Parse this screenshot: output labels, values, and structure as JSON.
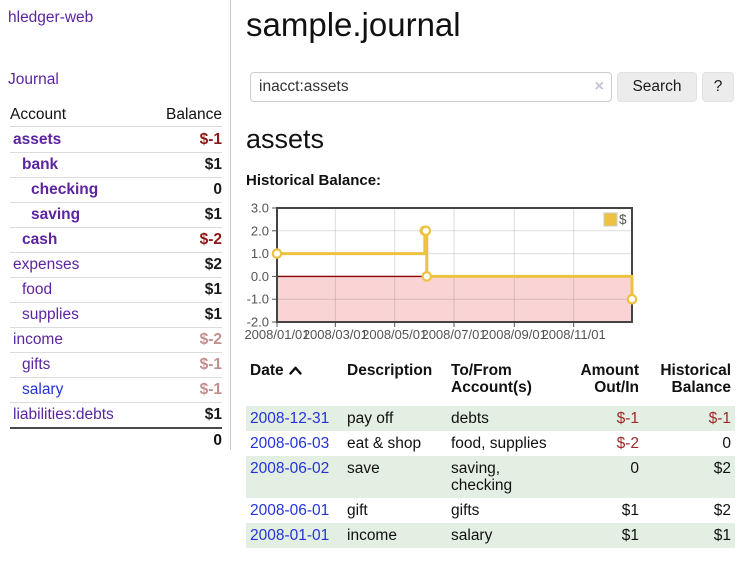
{
  "sidebar": {
    "brand": "hledger-web",
    "nav": {
      "journal": "Journal"
    },
    "accounts_table": {
      "headers": {
        "account": "Account",
        "balance": "Balance"
      },
      "rows": [
        {
          "name": "assets",
          "depth": 1,
          "bold": true,
          "balance": "$-1",
          "balance_style": "neg"
        },
        {
          "name": "bank",
          "depth": 2,
          "bold": true,
          "balance": "$1",
          "balance_style": "pos"
        },
        {
          "name": "checking",
          "depth": 3,
          "bold": true,
          "balance": "0",
          "balance_style": "pos"
        },
        {
          "name": "saving",
          "depth": 3,
          "bold": true,
          "balance": "$1",
          "balance_style": "pos"
        },
        {
          "name": "cash",
          "depth": 2,
          "bold": true,
          "balance": "$-2",
          "balance_style": "neg"
        },
        {
          "name": "expenses",
          "depth": 1,
          "bold": false,
          "balance": "$2",
          "balance_style": "pos"
        },
        {
          "name": "food",
          "depth": 2,
          "bold": false,
          "balance": "$1",
          "balance_style": "pos"
        },
        {
          "name": "supplies",
          "depth": 2,
          "bold": false,
          "balance": "$1",
          "balance_style": "pos"
        },
        {
          "name": "income",
          "depth": 1,
          "bold": false,
          "balance": "$-2",
          "balance_style": "neg-light"
        },
        {
          "name": "gifts",
          "depth": 2,
          "bold": false,
          "balance": "$-1",
          "balance_style": "neg-light"
        },
        {
          "name": "salary",
          "depth": 2,
          "bold": false,
          "balance": "$-1",
          "balance_style": "neg-light",
          "link_color": "blue"
        },
        {
          "name": "liabilities:debts",
          "depth": 1,
          "bold": false,
          "balance": "$1",
          "balance_style": "pos"
        }
      ],
      "total": "0"
    }
  },
  "header": {
    "title": "sample.journal"
  },
  "search": {
    "query": "inacct:assets",
    "clear_icon": "×",
    "search_button": "Search",
    "help_button": "?"
  },
  "account_page": {
    "title": "assets",
    "chart_label": "Historical Balance:"
  },
  "chart_data": {
    "type": "line",
    "step": true,
    "title": "Historical Balance",
    "series": [
      {
        "name": "$",
        "color": "#edc240",
        "points": [
          [
            "2008-01-01",
            1
          ],
          [
            "2008-06-01",
            2
          ],
          [
            "2008-06-02",
            2
          ],
          [
            "2008-06-03",
            0
          ],
          [
            "2008-12-31",
            -1
          ]
        ]
      }
    ],
    "x_range": [
      "2008-01-01",
      "2008-12-31"
    ],
    "x_ticks": [
      "2008/01/01",
      "2008/03/01",
      "2008/05/01",
      "2008/07/01",
      "2008/09/01",
      "2008/11/01"
    ],
    "y_ticks": [
      "3.0",
      "2.0",
      "1.0",
      "0.0",
      "-1.0",
      "-2.0"
    ],
    "ylim": [
      -2,
      3
    ],
    "legend_position": "top-right",
    "grid": true,
    "negative_region_color": "#fad4d4",
    "zero_line_color": "#8b0000",
    "border_color": "#444444",
    "tick_text_color": "#545454"
  },
  "register_table": {
    "headers": {
      "date": "Date",
      "description": "Description",
      "accounts": "To/From Account(s)",
      "amount": "Amount Out/In",
      "balance": "Historical Balance"
    },
    "sort_icon": "chevron-up",
    "rows": [
      {
        "date": "2008-12-31",
        "description": "pay off",
        "accounts": [
          "debts"
        ],
        "amount": "$-1",
        "balance": "$-1"
      },
      {
        "date": "2008-06-03",
        "description": "eat & shop",
        "accounts": [
          "food, supplies"
        ],
        "amount": "$-2",
        "balance": "0"
      },
      {
        "date": "2008-06-02",
        "description": "save",
        "accounts": [
          "saving,",
          "checking"
        ],
        "amount": "0",
        "balance": "$2"
      },
      {
        "date": "2008-06-01",
        "description": "gift",
        "accounts": [
          "gifts"
        ],
        "amount": "$1",
        "balance": "$2"
      },
      {
        "date": "2008-01-01",
        "description": "income",
        "accounts": [
          "salary"
        ],
        "amount": "$1",
        "balance": "$1"
      }
    ]
  }
}
